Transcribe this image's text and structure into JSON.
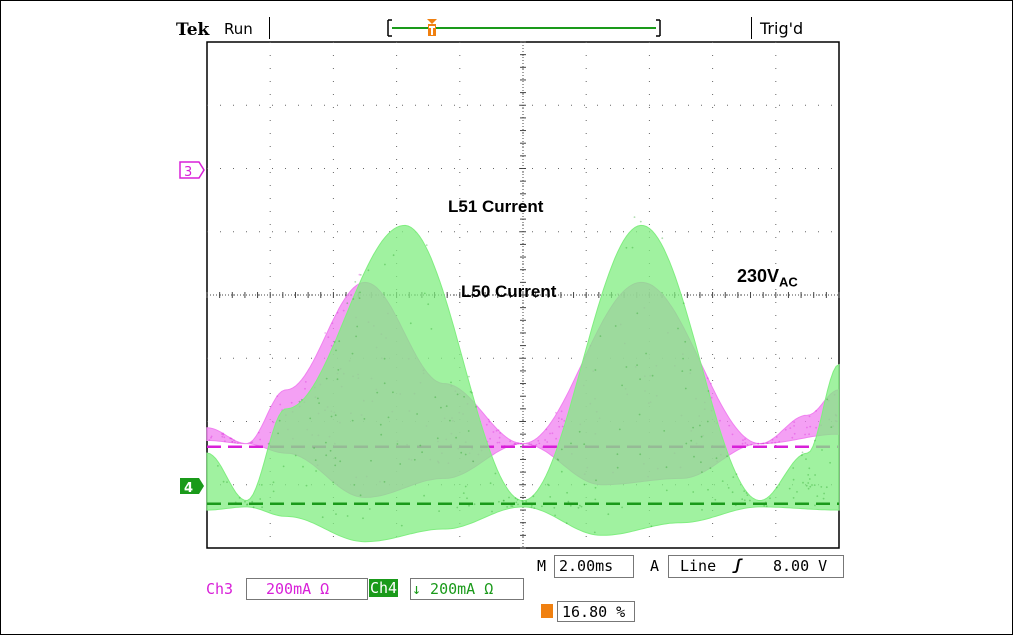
{
  "header": {
    "brand": "Tek",
    "acq_state": "Run",
    "trigger_status": "Trig'd"
  },
  "trigger_marker": "T",
  "channels": [
    {
      "id": "3",
      "label": "Ch3",
      "scale": "200mA Ω",
      "color": "#d820d8",
      "trace_color": "#f080f0"
    },
    {
      "id": "4",
      "label": "Ch4",
      "scale": "↓ 200mA Ω",
      "color": "#1a9a1a",
      "trace_color": "#80ee80"
    }
  ],
  "timebase": {
    "prefix": "M",
    "value": "2.00ms"
  },
  "trigger": {
    "prefix": "A",
    "source": "Line",
    "slope": "ʃ",
    "level": "8.00 V"
  },
  "trigger_position": "16.80 %",
  "annotations": {
    "l51": "L51 Current",
    "l50": "L50 Current",
    "voltage_main": "230V",
    "voltage_sub": "AC"
  },
  "chart_data": {
    "type": "line",
    "title": "",
    "xlabel": "",
    "ylabel": "",
    "grid": true,
    "x_divisions": 10,
    "y_divisions": 8,
    "time_per_div_ms": 2.0,
    "volts_per_div": "200mA",
    "series": [
      {
        "name": "L51 Current",
        "channel": "3",
        "ref_level_div": 1.6,
        "envelope_upper_div": [
          [
            0,
            0.3
          ],
          [
            0.5,
            0.05
          ],
          [
            1.0,
            0.9
          ],
          [
            2.0,
            2.6
          ],
          [
            3.0,
            1.0
          ],
          [
            4.0,
            0.05
          ],
          [
            5.5,
            2.6
          ],
          [
            7.0,
            0.05
          ],
          [
            7.6,
            0.5
          ],
          [
            8.0,
            0.9
          ]
        ],
        "envelope_lower_div": [
          [
            0,
            0.1
          ],
          [
            0.5,
            0.05
          ],
          [
            1.0,
            -0.1
          ],
          [
            2.0,
            -0.8
          ],
          [
            3.0,
            -0.5
          ],
          [
            4.0,
            0.05
          ],
          [
            5.0,
            -0.6
          ],
          [
            6.0,
            -0.5
          ],
          [
            7.0,
            0.05
          ],
          [
            8.0,
            0.2
          ]
        ]
      },
      {
        "name": "L50 Current",
        "channel": "4",
        "ref_level_div": 0.7,
        "envelope_upper_div": [
          [
            0,
            0.8
          ],
          [
            0.5,
            0.05
          ],
          [
            1.0,
            1.5
          ],
          [
            2.5,
            4.4
          ],
          [
            4.0,
            0.05
          ],
          [
            5.5,
            4.4
          ],
          [
            7.0,
            0.05
          ],
          [
            7.6,
            0.8
          ],
          [
            8.0,
            2.2
          ]
        ],
        "envelope_lower_div": [
          [
            0,
            -0.1
          ],
          [
            0.5,
            -0.05
          ],
          [
            1.0,
            -0.2
          ],
          [
            2.0,
            -0.6
          ],
          [
            3.0,
            -0.4
          ],
          [
            4.0,
            -0.05
          ],
          [
            5.0,
            -0.5
          ],
          [
            6.0,
            -0.3
          ],
          [
            7.0,
            -0.05
          ],
          [
            8.0,
            -0.1
          ]
        ]
      }
    ]
  }
}
